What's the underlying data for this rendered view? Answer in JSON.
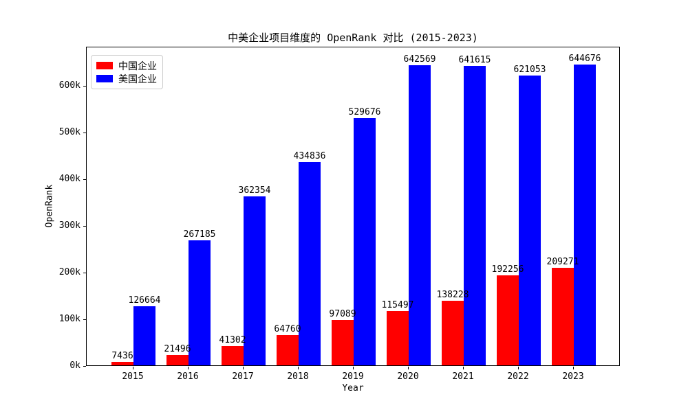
{
  "figure": {
    "title": "中美企业项目维度的 OpenRank 对比 (2015-2023)",
    "xlabel": "Year",
    "ylabel": "OpenRank"
  },
  "legend": {
    "items": [
      {
        "label": "中国企业",
        "color": "#ff0000"
      },
      {
        "label": "美国企业",
        "color": "#0000ff"
      }
    ]
  },
  "chart_data": {
    "type": "bar",
    "title": "中美企业项目维度的 OpenRank 对比 (2015-2023)",
    "xlabel": "Year",
    "ylabel": "OpenRank",
    "categories": [
      "2015",
      "2016",
      "2017",
      "2018",
      "2019",
      "2020",
      "2021",
      "2022",
      "2023"
    ],
    "series": [
      {
        "name": "中国企业",
        "color": "#ff0000",
        "values": [
          7436,
          21496,
          41302,
          64760,
          97089,
          115497,
          138228,
          192256,
          209271
        ]
      },
      {
        "name": "美国企业",
        "color": "#0000ff",
        "values": [
          126664,
          267185,
          362354,
          434836,
          529676,
          642569,
          641615,
          621053,
          644676
        ]
      }
    ],
    "bar_value_labels": true,
    "ylim": [
      0,
      684000
    ],
    "yticks": [
      {
        "value": 0,
        "label": "0k"
      },
      {
        "value": 100000,
        "label": "100k"
      },
      {
        "value": 200000,
        "label": "200k"
      },
      {
        "value": 300000,
        "label": "300k"
      },
      {
        "value": 400000,
        "label": "400k"
      },
      {
        "value": 500000,
        "label": "500k"
      },
      {
        "value": 600000,
        "label": "600k"
      }
    ],
    "grid": false,
    "legend_position": "upper-left"
  }
}
